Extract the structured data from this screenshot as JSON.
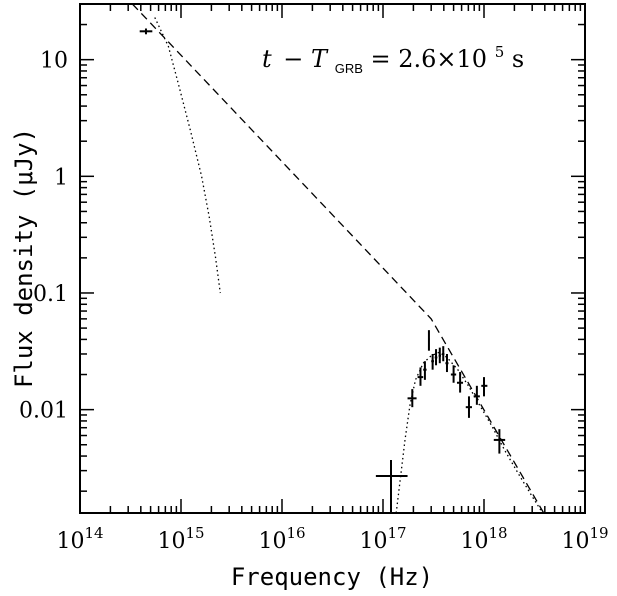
{
  "chart_data": {
    "type": "scatter",
    "xlabel": "Frequency (Hz)",
    "ylabel": "Flux density (μJy)",
    "xscale": "log",
    "yscale": "log",
    "xlim": [
      100000000000000.0,
      1e+19
    ],
    "ylim": [
      0.0013,
      30
    ],
    "grid": false,
    "annotation": {
      "t": "t",
      "minus": "−",
      "T": "T",
      "sub": "GRB",
      "rest": " = 2.6×10",
      "exp": "5",
      "unit": " s"
    },
    "x_ticks": [
      {
        "value": 100000000000000.0,
        "base": "10",
        "exp": "14"
      },
      {
        "value": 1000000000000000.0,
        "base": "10",
        "exp": "15"
      },
      {
        "value": 1e+16,
        "base": "10",
        "exp": "16"
      },
      {
        "value": 1e+17,
        "base": "10",
        "exp": "17"
      },
      {
        "value": 1e+18,
        "base": "10",
        "exp": "18"
      },
      {
        "value": 1e+19,
        "base": "10",
        "exp": "19"
      }
    ],
    "y_ticks": [
      {
        "value": 10,
        "label": "10"
      },
      {
        "value": 1,
        "label": "1"
      },
      {
        "value": 0.1,
        "label": "0.1"
      },
      {
        "value": 0.01,
        "label": "0.01"
      }
    ],
    "series": [
      {
        "style": "errorbars",
        "points": [
          {
            "x": 450000000000000.0,
            "y": 17.5,
            "xerr": [
              390000000000000.0,
              520000000000000.0
            ],
            "yerr": [
              16.5,
              18.5
            ]
          },
          {
            "x": 1.2e+17,
            "y": 0.0027,
            "xerr": [
              8.5e+16,
              1.75e+17
            ],
            "yerr": [
              0.0013,
              0.0037
            ]
          },
          {
            "x": 1.95e+17,
            "y": 0.0125,
            "xerr": [
              1.75e+17,
              2.15e+17
            ],
            "yerr": [
              0.0105,
              0.015
            ]
          },
          {
            "x": 2.35e+17,
            "y": 0.019,
            "xerr": [
              2.2e+17,
              2.5e+17
            ],
            "yerr": [
              0.016,
              0.023
            ]
          },
          {
            "x": 2.6e+17,
            "y": 0.022,
            "xerr": [
              2.5e+17,
              2.7e+17
            ],
            "yerr": [
              0.018,
              0.026
            ]
          },
          {
            "x": 2.85e+17,
            "y": 0.04,
            "xerr": [
              2.8e+17,
              2.9e+17
            ],
            "yerr": [
              0.032,
              0.048
            ]
          },
          {
            "x": 3.1e+17,
            "y": 0.026,
            "xerr": [
              3e+17,
              3.2e+17
            ],
            "yerr": [
              0.022,
              0.03
            ]
          },
          {
            "x": 3.35e+17,
            "y": 0.028,
            "xerr": [
              3.25e+17,
              3.45e+17
            ],
            "yerr": [
              0.024,
              0.033
            ]
          },
          {
            "x": 3.65e+17,
            "y": 0.029,
            "xerr": [
              3.55e+17,
              3.75e+17
            ],
            "yerr": [
              0.025,
              0.034
            ]
          },
          {
            "x": 3.95e+17,
            "y": 0.03,
            "xerr": [
              3.85e+17,
              4.05e+17
            ],
            "yerr": [
              0.026,
              0.035
            ]
          },
          {
            "x": 4.3e+17,
            "y": 0.025,
            "xerr": [
              4.15e+17,
              4.45e+17
            ],
            "yerr": [
              0.021,
              0.03
            ]
          },
          {
            "x": 5e+17,
            "y": 0.02,
            "xerr": [
              4.7e+17,
              5.3e+17
            ],
            "yerr": [
              0.017,
              0.024
            ]
          },
          {
            "x": 5.8e+17,
            "y": 0.017,
            "xerr": [
              5.4e+17,
              6.2e+17
            ],
            "yerr": [
              0.014,
              0.021
            ]
          },
          {
            "x": 7.1e+17,
            "y": 0.0105,
            "xerr": [
              6.6e+17,
              7.6e+17
            ],
            "yerr": [
              0.0085,
              0.013
            ]
          },
          {
            "x": 8.5e+17,
            "y": 0.013,
            "xerr": [
              7.9e+17,
              9.1e+17
            ],
            "yerr": [
              0.011,
              0.016
            ]
          },
          {
            "x": 1e+18,
            "y": 0.016,
            "xerr": [
              9.4e+17,
              1.08e+18
            ],
            "yerr": [
              0.013,
              0.019
            ]
          },
          {
            "x": 1.42e+18,
            "y": 0.0055,
            "xerr": [
              1.25e+18,
              1.62e+18
            ],
            "yerr": [
              0.0042,
              0.0068
            ]
          }
        ]
      },
      {
        "style": "dashed",
        "points": [
          {
            "x": 330000000000000.0,
            "y": 30
          },
          {
            "x": 3e+17,
            "y": 0.06
          },
          {
            "x": 3.9e+18,
            "y": 0.0013
          }
        ]
      },
      {
        "style": "dotted",
        "points": [
          {
            "x": 550000000000000.0,
            "y": 23
          },
          {
            "x": 750000000000000.0,
            "y": 13
          },
          {
            "x": 950000000000000.0,
            "y": 6
          },
          {
            "x": 1250000000000000.0,
            "y": 2.4
          },
          {
            "x": 1600000000000000.0,
            "y": 1.0
          },
          {
            "x": 1900000000000000.0,
            "y": 0.45
          },
          {
            "x": 2200000000000000.0,
            "y": 0.2
          },
          {
            "x": 2450000000000000.0,
            "y": 0.1
          }
        ]
      },
      {
        "style": "dotted",
        "points": [
          {
            "x": 1.35e+17,
            "y": 0.0013
          },
          {
            "x": 1.48e+17,
            "y": 0.0025
          },
          {
            "x": 1.65e+17,
            "y": 0.0055
          },
          {
            "x": 1.85e+17,
            "y": 0.011
          },
          {
            "x": 2.1e+17,
            "y": 0.018
          },
          {
            "x": 2.5e+17,
            "y": 0.025
          },
          {
            "x": 3e+17,
            "y": 0.029
          },
          {
            "x": 3.6e+17,
            "y": 0.031
          },
          {
            "x": 4.3e+17,
            "y": 0.028
          },
          {
            "x": 5.5e+17,
            "y": 0.022
          },
          {
            "x": 7e+17,
            "y": 0.016
          },
          {
            "x": 9e+17,
            "y": 0.011
          },
          {
            "x": 1.2e+18,
            "y": 0.0072
          },
          {
            "x": 1.6e+18,
            "y": 0.0045
          },
          {
            "x": 2.2e+18,
            "y": 0.0028
          },
          {
            "x": 3e+18,
            "y": 0.0018
          },
          {
            "x": 3.8e+18,
            "y": 0.0013
          }
        ]
      }
    ]
  }
}
